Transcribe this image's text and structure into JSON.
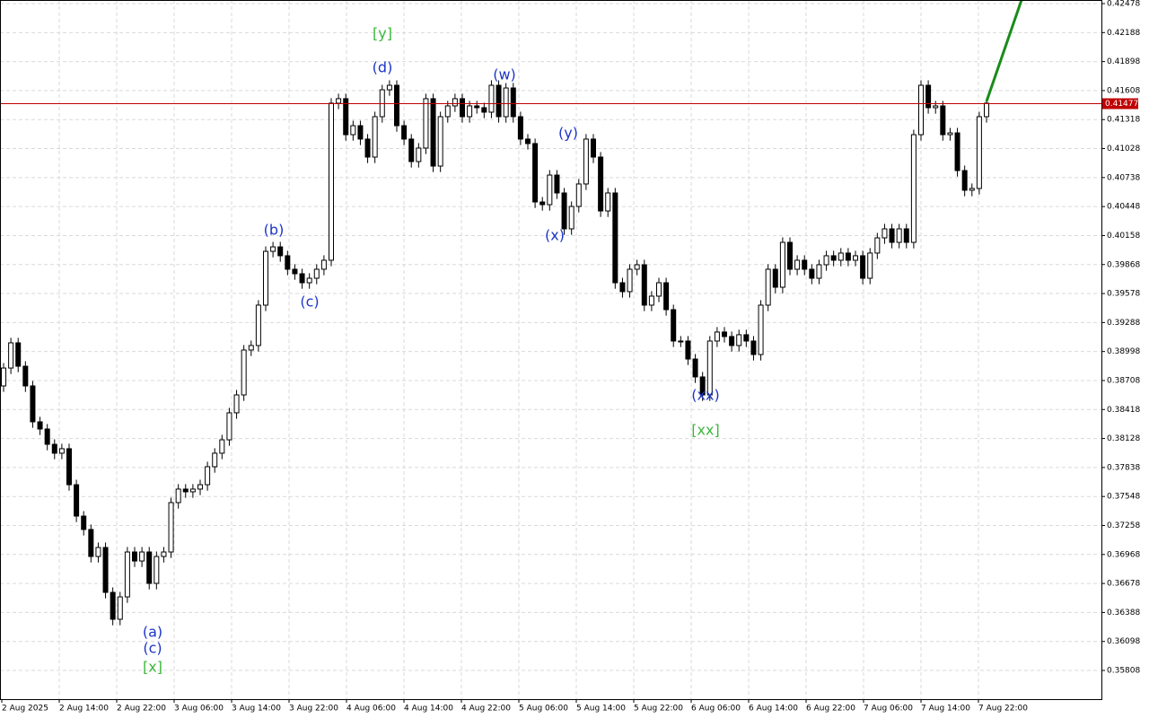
{
  "chart_data": {
    "type": "candlestick",
    "up_color": "#ffffff",
    "down_color": "#000000",
    "wick_color": "#000000",
    "ylim": [
      0.35521,
      0.42514
    ],
    "yticks": [
      0.42478,
      0.42188,
      0.41898,
      0.41608,
      0.41318,
      0.41028,
      0.40738,
      0.40448,
      0.40158,
      0.39868,
      0.39578,
      0.39288,
      0.38998,
      0.38708,
      0.38418,
      0.38128,
      0.37838,
      0.37548,
      0.37258,
      0.36968,
      0.36678,
      0.36388,
      0.36098,
      0.35808
    ],
    "grid": true,
    "x_labels": [
      "2 Aug 2025",
      "2 Aug 14:00",
      "2 Aug 22:00",
      "3 Aug 06:00",
      "3 Aug 14:00",
      "3 Aug 22:00",
      "4 Aug 06:00",
      "4 Aug 14:00",
      "4 Aug 22:00",
      "5 Aug 06:00",
      "5 Aug 14:00",
      "5 Aug 22:00",
      "6 Aug 06:00",
      "6 Aug 14:00",
      "6 Aug 22:00",
      "7 Aug 06:00",
      "7 Aug 14:00",
      "7 Aug 22:00"
    ],
    "open": [
      0.38654,
      0.38833,
      0.39085,
      0.38851,
      0.38654,
      0.38295,
      0.38223,
      0.3807,
      0.37981,
      0.38026,
      0.37666,
      0.37352,
      0.37218,
      0.36948,
      0.37038,
      0.36589,
      0.3632,
      0.36544,
      0.36993,
      0.36903,
      0.36993,
      0.36679,
      0.36948,
      0.36993,
      0.37487,
      0.37622,
      0.37595,
      0.37622,
      0.37666,
      0.37846,
      0.37981,
      0.38115,
      0.38385,
      0.38564,
      0.39013,
      0.39058,
      0.39462,
      0.4,
      0.40045,
      0.39956,
      0.39821,
      0.39776,
      0.39686,
      0.39731,
      0.39821,
      0.39911,
      0.41482,
      0.41527,
      0.41167,
      0.41257,
      0.41123,
      0.40943,
      0.41347,
      0.41616,
      0.41661,
      0.41257,
      0.41123,
      0.40898,
      0.41033,
      0.41527,
      0.40853,
      0.41347,
      0.41455,
      0.41527,
      0.41347,
      0.41455,
      0.41437,
      0.41392,
      0.41661,
      0.41347,
      0.41634,
      0.41347,
      0.41123,
      0.41078,
      0.40494,
      0.40467,
      0.40763,
      0.40584,
      0.40225,
      0.40449,
      0.40674,
      0.41123,
      0.40943,
      0.40404,
      0.40584,
      0.39686,
      0.39597,
      0.39821,
      0.39866,
      0.39462,
      0.39552,
      0.39686,
      0.39417,
      0.39103,
      0.39103,
      0.38923,
      0.38744,
      0.38564,
      0.39103,
      0.39193,
      0.39148,
      0.39058,
      0.39166,
      0.39103,
      0.38968,
      0.39462,
      0.39821,
      0.39641,
      0.4009,
      0.39821,
      0.39911,
      0.39821,
      0.39731,
      0.39866,
      0.39956,
      0.39911,
      0.39983,
      0.39911,
      0.39956,
      0.39731,
      0.39983,
      0.40135,
      0.40225,
      0.4009,
      0.40225,
      0.4009,
      0.41167,
      0.41661,
      0.41437,
      0.41455,
      0.41167,
      0.41185,
      0.40808,
      0.40611,
      0.40629,
      0.41347
    ],
    "high": [
      0.38883,
      0.39135,
      0.39135,
      0.38901,
      0.38704,
      0.38345,
      0.38273,
      0.3812,
      0.38076,
      0.38076,
      0.37716,
      0.37402,
      0.37268,
      0.37088,
      0.37088,
      0.36639,
      0.36594,
      0.37043,
      0.37043,
      0.37043,
      0.37043,
      0.36998,
      0.37043,
      0.37537,
      0.37672,
      0.37672,
      0.37672,
      0.37716,
      0.37896,
      0.38031,
      0.38165,
      0.38435,
      0.38614,
      0.39063,
      0.39108,
      0.39512,
      0.4005,
      0.40095,
      0.40095,
      0.40006,
      0.39871,
      0.39826,
      0.39781,
      0.39871,
      0.39961,
      0.41532,
      0.41577,
      0.41577,
      0.41307,
      0.41307,
      0.41173,
      0.41397,
      0.41666,
      0.41711,
      0.41711,
      0.41307,
      0.41173,
      0.41083,
      0.41577,
      0.41577,
      0.41397,
      0.41505,
      0.41577,
      0.41577,
      0.41505,
      0.41505,
      0.41487,
      0.41711,
      0.41711,
      0.41684,
      0.41684,
      0.41397,
      0.41173,
      0.41128,
      0.40544,
      0.40813,
      0.40813,
      0.40634,
      0.40499,
      0.40724,
      0.41173,
      0.41173,
      0.40993,
      0.40634,
      0.40634,
      0.39736,
      0.39871,
      0.39916,
      0.39916,
      0.39602,
      0.39736,
      0.39736,
      0.39467,
      0.39153,
      0.39153,
      0.38973,
      0.38794,
      0.39153,
      0.39243,
      0.39243,
      0.39198,
      0.39216,
      0.39216,
      0.39153,
      0.39512,
      0.39871,
      0.39871,
      0.4014,
      0.4014,
      0.39961,
      0.39961,
      0.39871,
      0.39916,
      0.40006,
      0.40006,
      0.40033,
      0.40033,
      0.40006,
      0.40006,
      0.40033,
      0.40185,
      0.40275,
      0.40275,
      0.40275,
      0.40275,
      0.41217,
      0.41711,
      0.41711,
      0.41505,
      0.41505,
      0.41235,
      0.41235,
      0.40858,
      0.40679,
      0.41397,
      0.41532
    ],
    "low": [
      0.38594,
      0.38773,
      0.38791,
      0.38594,
      0.38235,
      0.38163,
      0.3801,
      0.37921,
      0.37921,
      0.37606,
      0.37292,
      0.37158,
      0.36888,
      0.36888,
      0.36529,
      0.3626,
      0.3626,
      0.36484,
      0.36843,
      0.36843,
      0.36619,
      0.36619,
      0.36888,
      0.36933,
      0.37427,
      0.37535,
      0.37535,
      0.37562,
      0.37606,
      0.37786,
      0.37921,
      0.38055,
      0.38325,
      0.38504,
      0.38953,
      0.38998,
      0.39402,
      0.3994,
      0.39896,
      0.39761,
      0.39716,
      0.39626,
      0.39626,
      0.39671,
      0.39761,
      0.39851,
      0.41422,
      0.41107,
      0.41107,
      0.41063,
      0.40883,
      0.40883,
      0.41287,
      0.41556,
      0.41197,
      0.41063,
      0.40838,
      0.40838,
      0.40973,
      0.40793,
      0.40793,
      0.41287,
      0.41395,
      0.41287,
      0.41287,
      0.41377,
      0.41332,
      0.41332,
      0.41287,
      0.41287,
      0.41287,
      0.41063,
      0.41018,
      0.40434,
      0.40407,
      0.40407,
      0.40524,
      0.40165,
      0.40165,
      0.40389,
      0.40614,
      0.40883,
      0.40344,
      0.40344,
      0.39626,
      0.39537,
      0.39537,
      0.39761,
      0.39402,
      0.39402,
      0.39492,
      0.39357,
      0.39043,
      0.39043,
      0.38863,
      0.38684,
      0.38504,
      0.38504,
      0.39043,
      0.39088,
      0.38998,
      0.38998,
      0.39043,
      0.38908,
      0.38908,
      0.39402,
      0.39581,
      0.39581,
      0.39761,
      0.39761,
      0.39761,
      0.39671,
      0.39671,
      0.39806,
      0.39851,
      0.39851,
      0.39851,
      0.39851,
      0.39671,
      0.39671,
      0.39923,
      0.40075,
      0.4003,
      0.4003,
      0.4003,
      0.4003,
      0.41107,
      0.41377,
      0.41377,
      0.41107,
      0.41107,
      0.40748,
      0.40551,
      0.40551,
      0.40569,
      0.41287
    ],
    "close": [
      0.38833,
      0.39085,
      0.38851,
      0.38654,
      0.38295,
      0.38223,
      0.3807,
      0.37981,
      0.38026,
      0.37666,
      0.37352,
      0.37218,
      0.36948,
      0.37038,
      0.36589,
      0.3632,
      0.36544,
      0.36993,
      0.36903,
      0.36993,
      0.36679,
      0.36948,
      0.36993,
      0.37487,
      0.37622,
      0.37595,
      0.37622,
      0.37666,
      0.37846,
      0.37981,
      0.38115,
      0.38385,
      0.38564,
      0.39013,
      0.39058,
      0.39462,
      0.4,
      0.40045,
      0.39956,
      0.39821,
      0.39776,
      0.39686,
      0.39731,
      0.39821,
      0.39911,
      0.41482,
      0.41527,
      0.41167,
      0.41257,
      0.41123,
      0.40943,
      0.41347,
      0.41616,
      0.41661,
      0.41257,
      0.41123,
      0.40898,
      0.41033,
      0.41527,
      0.40853,
      0.41347,
      0.41455,
      0.41527,
      0.41347,
      0.41455,
      0.41437,
      0.41392,
      0.41661,
      0.41347,
      0.41634,
      0.41347,
      0.41123,
      0.41078,
      0.40494,
      0.40467,
      0.40763,
      0.40584,
      0.40225,
      0.40449,
      0.40674,
      0.41123,
      0.40943,
      0.40404,
      0.40584,
      0.39686,
      0.39597,
      0.39821,
      0.39866,
      0.39462,
      0.39552,
      0.39686,
      0.39417,
      0.39103,
      0.39103,
      0.38923,
      0.38744,
      0.38564,
      0.39103,
      0.39193,
      0.39148,
      0.39058,
      0.39166,
      0.39103,
      0.38968,
      0.39462,
      0.39821,
      0.39641,
      0.4009,
      0.39821,
      0.39911,
      0.39821,
      0.39731,
      0.39866,
      0.39956,
      0.39911,
      0.39983,
      0.39911,
      0.39956,
      0.39731,
      0.39983,
      0.40135,
      0.40225,
      0.4009,
      0.40225,
      0.4009,
      0.41167,
      0.41661,
      0.41437,
      0.41455,
      0.41167,
      0.41185,
      0.40808,
      0.40611,
      0.40629,
      0.41347,
      0.41482
    ],
    "price_line": {
      "value": 0.41477,
      "color": "#c00000"
    },
    "annotations": [
      {
        "text": "[y]",
        "color": "#3cb83c"
      },
      {
        "text": "(d)",
        "color": "#1c35c8"
      },
      {
        "text": "(w)",
        "color": "#1c35c8"
      },
      {
        "text": "(b)",
        "color": "#1c35c8"
      },
      {
        "text": "(c)",
        "color": "#1c35c8"
      },
      {
        "text": "(y)",
        "color": "#1c35c8"
      },
      {
        "text": "(x)",
        "color": "#1c35c8"
      },
      {
        "text": "(xx)",
        "color": "#1c35c8"
      },
      {
        "text": "[xx]",
        "color": "#3cb83c"
      },
      {
        "text": "(a)",
        "color": "#1c35c8"
      },
      {
        "text": "(c)",
        "color": "#1c35c8"
      },
      {
        "text": "[x]",
        "color": "#3cb83c"
      }
    ]
  }
}
